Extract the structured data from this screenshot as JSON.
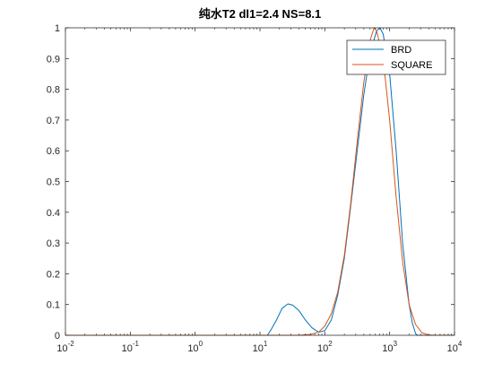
{
  "chart_data": {
    "type": "line",
    "title": "纯水T2 dl1=2.4 NS=8.1",
    "xscale": "log",
    "xlim": [
      0.01,
      10000
    ],
    "ylim": [
      0,
      1
    ],
    "x_ticks": [
      {
        "base": "10",
        "exp": "-2"
      },
      {
        "base": "10",
        "exp": "-1"
      },
      {
        "base": "10",
        "exp": "0"
      },
      {
        "base": "10",
        "exp": "1"
      },
      {
        "base": "10",
        "exp": "2"
      },
      {
        "base": "10",
        "exp": "3"
      },
      {
        "base": "10",
        "exp": "4"
      }
    ],
    "y_ticks": [
      "0",
      "0.1",
      "0.2",
      "0.3",
      "0.4",
      "0.5",
      "0.6",
      "0.7",
      "0.8",
      "0.9",
      "1"
    ],
    "grid": false,
    "legend_position": "top-right",
    "legend": [
      "BRD",
      "SQUARE"
    ],
    "series": [
      {
        "name": "BRD",
        "color": "#0072BD",
        "points": [
          [
            0.01,
            0
          ],
          [
            13,
            0
          ],
          [
            15,
            0.02
          ],
          [
            18,
            0.05
          ],
          [
            22,
            0.088
          ],
          [
            27,
            0.102
          ],
          [
            32,
            0.098
          ],
          [
            40,
            0.08
          ],
          [
            50,
            0.05
          ],
          [
            63,
            0.025
          ],
          [
            80,
            0.01
          ],
          [
            100,
            0.015
          ],
          [
            126,
            0.05
          ],
          [
            158,
            0.13
          ],
          [
            200,
            0.25
          ],
          [
            251,
            0.42
          ],
          [
            316,
            0.6
          ],
          [
            398,
            0.78
          ],
          [
            501,
            0.92
          ],
          [
            631,
            0.99
          ],
          [
            708,
            1.0
          ],
          [
            794,
            0.98
          ],
          [
            1000,
            0.85
          ],
          [
            1259,
            0.6
          ],
          [
            1585,
            0.3
          ],
          [
            1995,
            0.1
          ],
          [
            2239,
            0.04
          ],
          [
            2512,
            0.005
          ],
          [
            2700,
            0
          ],
          [
            10000,
            0
          ]
        ]
      },
      {
        "name": "SQUARE",
        "color": "#D95319",
        "points": [
          [
            0.01,
            0
          ],
          [
            40,
            0
          ],
          [
            60,
            0.003
          ],
          [
            80,
            0.01
          ],
          [
            100,
            0.03
          ],
          [
            126,
            0.07
          ],
          [
            158,
            0.14
          ],
          [
            200,
            0.26
          ],
          [
            251,
            0.43
          ],
          [
            316,
            0.63
          ],
          [
            398,
            0.82
          ],
          [
            501,
            0.96
          ],
          [
            575,
            1.0
          ],
          [
            631,
            0.99
          ],
          [
            794,
            0.9
          ],
          [
            1000,
            0.7
          ],
          [
            1259,
            0.45
          ],
          [
            1585,
            0.24
          ],
          [
            1995,
            0.1
          ],
          [
            2512,
            0.035
          ],
          [
            3162,
            0.008
          ],
          [
            4000,
            0.001
          ],
          [
            5000,
            0
          ],
          [
            10000,
            0
          ]
        ]
      }
    ]
  }
}
